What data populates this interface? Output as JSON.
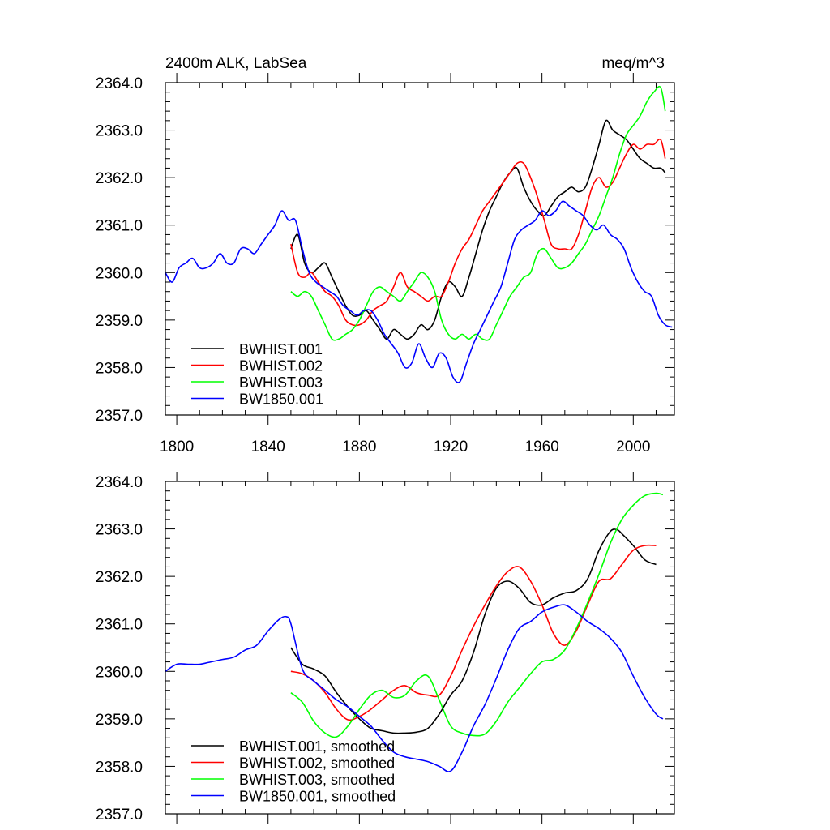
{
  "chart_data": [
    {
      "type": "line",
      "title": "2400m ALK, LabSea",
      "units": "meq/m^3",
      "xlim": [
        1795,
        2018
      ],
      "ylim": [
        2357.0,
        2364.0
      ],
      "xticks": [
        1800,
        1840,
        1880,
        1920,
        1960,
        2000
      ],
      "xtick_labels": [
        "1800",
        "1840",
        "1880",
        "1920",
        "1960",
        "2000"
      ],
      "yticks": [
        2357,
        2358,
        2359,
        2360,
        2361,
        2362,
        2363,
        2364
      ],
      "ytick_labels": [
        "2357.0",
        "2358.0",
        "2359.0",
        "2360.0",
        "2361.0",
        "2362.0",
        "2363.0",
        "2364.0"
      ],
      "legend_position": "bottom-left",
      "series": [
        {
          "name": "BWHIST.001",
          "color": "#000000",
          "x": [
            1850,
            1853,
            1856,
            1859,
            1862,
            1865,
            1868,
            1871,
            1874,
            1877,
            1880,
            1883,
            1886,
            1889,
            1892,
            1895,
            1898,
            1901,
            1904,
            1907,
            1910,
            1913,
            1916,
            1919,
            1922,
            1925,
            1928,
            1931,
            1934,
            1937,
            1940,
            1943,
            1946,
            1949,
            1952,
            1955,
            1958,
            1961,
            1964,
            1967,
            1970,
            1973,
            1976,
            1979,
            1982,
            1985,
            1988,
            1991,
            1994,
            1997,
            2000,
            2003,
            2006,
            2009,
            2012,
            2014
          ],
          "y": [
            2360.5,
            2360.8,
            2360.2,
            2360.0,
            2360.1,
            2360.2,
            2359.9,
            2359.6,
            2359.3,
            2359.1,
            2359.1,
            2359.2,
            2359.0,
            2358.8,
            2358.6,
            2358.8,
            2358.7,
            2358.6,
            2358.7,
            2358.9,
            2358.8,
            2359.0,
            2359.5,
            2359.8,
            2359.7,
            2359.5,
            2359.9,
            2360.4,
            2360.9,
            2361.3,
            2361.6,
            2361.9,
            2362.1,
            2362.2,
            2361.8,
            2361.5,
            2361.3,
            2361.2,
            2361.4,
            2361.6,
            2361.7,
            2361.8,
            2361.7,
            2361.8,
            2362.2,
            2362.7,
            2363.2,
            2363.0,
            2362.9,
            2362.8,
            2362.6,
            2362.4,
            2362.3,
            2362.2,
            2362.2,
            2362.1
          ]
        },
        {
          "name": "BWHIST.002",
          "color": "#ff0000",
          "x": [
            1850,
            1853,
            1856,
            1859,
            1862,
            1865,
            1868,
            1871,
            1874,
            1877,
            1880,
            1883,
            1886,
            1889,
            1892,
            1895,
            1898,
            1901,
            1904,
            1907,
            1910,
            1913,
            1916,
            1919,
            1922,
            1925,
            1928,
            1931,
            1934,
            1937,
            1940,
            1943,
            1946,
            1949,
            1952,
            1955,
            1958,
            1961,
            1964,
            1967,
            1970,
            1973,
            1976,
            1979,
            1982,
            1985,
            1988,
            1991,
            1994,
            1997,
            2000,
            2003,
            2006,
            2009,
            2012,
            2014
          ],
          "y": [
            2360.6,
            2360.0,
            2359.9,
            2360.0,
            2359.8,
            2359.6,
            2359.5,
            2359.3,
            2359.0,
            2358.9,
            2358.9,
            2359.0,
            2359.2,
            2359.3,
            2359.4,
            2359.7,
            2360.0,
            2359.7,
            2359.6,
            2359.5,
            2359.4,
            2359.5,
            2359.5,
            2359.8,
            2360.2,
            2360.5,
            2360.7,
            2361.0,
            2361.3,
            2361.5,
            2361.7,
            2361.9,
            2362.1,
            2362.3,
            2362.3,
            2362.0,
            2361.6,
            2361.1,
            2360.6,
            2360.5,
            2360.5,
            2360.5,
            2360.8,
            2361.3,
            2361.8,
            2362.0,
            2361.8,
            2361.9,
            2362.2,
            2362.5,
            2362.7,
            2362.6,
            2362.7,
            2362.7,
            2362.8,
            2362.4
          ]
        },
        {
          "name": "BWHIST.003",
          "color": "#00ff00",
          "x": [
            1850,
            1853,
            1856,
            1859,
            1862,
            1865,
            1868,
            1871,
            1874,
            1877,
            1880,
            1883,
            1886,
            1889,
            1892,
            1895,
            1898,
            1901,
            1904,
            1907,
            1910,
            1913,
            1916,
            1919,
            1922,
            1925,
            1928,
            1931,
            1934,
            1937,
            1940,
            1943,
            1946,
            1949,
            1952,
            1955,
            1958,
            1961,
            1964,
            1967,
            1970,
            1973,
            1976,
            1979,
            1982,
            1985,
            1988,
            1991,
            1994,
            1997,
            2000,
            2003,
            2006,
            2009,
            2012,
            2014
          ],
          "y": [
            2359.6,
            2359.5,
            2359.6,
            2359.5,
            2359.2,
            2358.9,
            2358.6,
            2358.6,
            2358.7,
            2358.8,
            2359.0,
            2359.3,
            2359.6,
            2359.7,
            2359.6,
            2359.5,
            2359.4,
            2359.6,
            2359.8,
            2360.0,
            2359.9,
            2359.6,
            2359.0,
            2358.7,
            2358.6,
            2358.7,
            2358.6,
            2358.7,
            2358.6,
            2358.6,
            2358.9,
            2359.2,
            2359.5,
            2359.7,
            2359.9,
            2360.0,
            2360.4,
            2360.5,
            2360.3,
            2360.1,
            2360.1,
            2360.2,
            2360.4,
            2360.6,
            2360.9,
            2361.2,
            2361.6,
            2362.0,
            2362.5,
            2362.9,
            2363.1,
            2363.3,
            2363.6,
            2363.8,
            2363.9,
            2363.4
          ]
        },
        {
          "name": "BW1850.001",
          "color": "#0000ff",
          "x": [
            1795,
            1798,
            1801,
            1804,
            1807,
            1810,
            1813,
            1816,
            1819,
            1822,
            1825,
            1828,
            1831,
            1834,
            1837,
            1840,
            1843,
            1846,
            1849,
            1852,
            1855,
            1858,
            1861,
            1864,
            1867,
            1870,
            1873,
            1876,
            1879,
            1882,
            1885,
            1888,
            1891,
            1894,
            1897,
            1900,
            1903,
            1906,
            1909,
            1912,
            1915,
            1918,
            1921,
            1924,
            1927,
            1930,
            1933,
            1936,
            1939,
            1942,
            1945,
            1948,
            1951,
            1954,
            1957,
            1960,
            1963,
            1966,
            1969,
            1972,
            1975,
            1978,
            1981,
            1984,
            1987,
            1990,
            1993,
            1996,
            1999,
            2002,
            2005,
            2008,
            2011,
            2014,
            2017
          ],
          "y": [
            2360.0,
            2359.8,
            2360.1,
            2360.2,
            2360.3,
            2360.1,
            2360.1,
            2360.2,
            2360.4,
            2360.2,
            2360.2,
            2360.5,
            2360.5,
            2360.4,
            2360.6,
            2360.8,
            2361.0,
            2361.3,
            2361.1,
            2361.1,
            2360.5,
            2360.0,
            2359.8,
            2359.7,
            2359.6,
            2359.5,
            2359.3,
            2359.2,
            2359.1,
            2359.2,
            2359.2,
            2359.0,
            2358.7,
            2358.5,
            2358.3,
            2358.0,
            2358.1,
            2358.5,
            2358.2,
            2358.0,
            2358.3,
            2358.2,
            2357.8,
            2357.7,
            2358.1,
            2358.5,
            2358.8,
            2359.1,
            2359.4,
            2359.7,
            2360.2,
            2360.7,
            2360.9,
            2361.0,
            2361.1,
            2361.3,
            2361.2,
            2361.3,
            2361.5,
            2361.4,
            2361.3,
            2361.2,
            2361.0,
            2360.9,
            2361.0,
            2360.8,
            2360.7,
            2360.5,
            2360.1,
            2359.8,
            2359.6,
            2359.5,
            2359.1,
            2358.9,
            2358.85
          ]
        }
      ]
    },
    {
      "type": "line",
      "xlim": [
        1795,
        2018
      ],
      "ylim": [
        2357.0,
        2364.0
      ],
      "xticks": [
        1800,
        1840,
        1880,
        1920,
        1960,
        2000
      ],
      "yticks": [
        2357,
        2358,
        2359,
        2360,
        2361,
        2362,
        2363,
        2364
      ],
      "ytick_labels": [
        "2357.0",
        "2358.0",
        "2359.0",
        "2360.0",
        "2361.0",
        "2362.0",
        "2363.0",
        "2364.0"
      ],
      "legend_position": "bottom-left",
      "series": [
        {
          "name": "BWHIST.001, smoothed",
          "color": "#000000",
          "x": [
            1850,
            1855,
            1860,
            1865,
            1870,
            1875,
            1880,
            1885,
            1890,
            1895,
            1900,
            1905,
            1910,
            1915,
            1920,
            1925,
            1930,
            1935,
            1940,
            1945,
            1950,
            1955,
            1960,
            1965,
            1970,
            1975,
            1980,
            1985,
            1990,
            1993,
            1995,
            2000,
            2005,
            2010
          ],
          "y": [
            2360.5,
            2360.15,
            2360.05,
            2359.9,
            2359.55,
            2359.25,
            2359.0,
            2358.8,
            2358.75,
            2358.7,
            2358.7,
            2358.72,
            2358.8,
            2359.1,
            2359.5,
            2359.8,
            2360.4,
            2361.2,
            2361.75,
            2361.9,
            2361.75,
            2361.45,
            2361.4,
            2361.55,
            2361.65,
            2361.7,
            2361.95,
            2362.55,
            2362.95,
            2362.98,
            2362.9,
            2362.65,
            2362.35,
            2362.25
          ]
        },
        {
          "name": "BWHIST.002, smoothed",
          "color": "#ff0000",
          "x": [
            1850,
            1855,
            1860,
            1865,
            1870,
            1875,
            1880,
            1885,
            1890,
            1895,
            1900,
            1905,
            1910,
            1915,
            1920,
            1925,
            1930,
            1935,
            1940,
            1945,
            1950,
            1955,
            1960,
            1965,
            1970,
            1975,
            1980,
            1985,
            1990,
            1995,
            2000,
            2005,
            2010
          ],
          "y": [
            2360.0,
            2359.95,
            2359.8,
            2359.55,
            2359.2,
            2358.98,
            2359.05,
            2359.2,
            2359.4,
            2359.6,
            2359.7,
            2359.55,
            2359.5,
            2359.5,
            2359.9,
            2360.45,
            2360.95,
            2361.4,
            2361.8,
            2362.1,
            2362.2,
            2361.9,
            2361.4,
            2360.8,
            2360.55,
            2360.85,
            2361.4,
            2361.9,
            2361.95,
            2362.25,
            2362.55,
            2362.65,
            2362.65
          ]
        },
        {
          "name": "BWHIST.003, smoothed",
          "color": "#00ff00",
          "x": [
            1850,
            1855,
            1860,
            1865,
            1870,
            1875,
            1880,
            1885,
            1890,
            1895,
            1900,
            1905,
            1910,
            1915,
            1920,
            1925,
            1930,
            1935,
            1940,
            1945,
            1950,
            1955,
            1960,
            1965,
            1970,
            1975,
            1980,
            1985,
            1990,
            1995,
            2000,
            2005,
            2010,
            2013
          ],
          "y": [
            2359.55,
            2359.35,
            2358.95,
            2358.7,
            2358.62,
            2358.85,
            2359.2,
            2359.5,
            2359.6,
            2359.45,
            2359.5,
            2359.8,
            2359.9,
            2359.4,
            2358.85,
            2358.7,
            2358.65,
            2358.68,
            2358.95,
            2359.35,
            2359.65,
            2359.95,
            2360.2,
            2360.25,
            2360.45,
            2360.9,
            2361.45,
            2362.05,
            2362.7,
            2363.2,
            2363.5,
            2363.7,
            2363.75,
            2363.72
          ]
        },
        {
          "name": "BW1850.001, smoothed",
          "color": "#0000ff",
          "x": [
            1795,
            1800,
            1805,
            1810,
            1815,
            1820,
            1825,
            1830,
            1835,
            1840,
            1845,
            1848,
            1850,
            1855,
            1860,
            1865,
            1870,
            1875,
            1880,
            1885,
            1890,
            1895,
            1900,
            1905,
            1910,
            1915,
            1920,
            1925,
            1930,
            1935,
            1940,
            1945,
            1950,
            1955,
            1960,
            1965,
            1970,
            1975,
            1980,
            1985,
            1990,
            1995,
            2000,
            2005,
            2010,
            2013
          ],
          "y": [
            2360.0,
            2360.15,
            2360.15,
            2360.15,
            2360.2,
            2360.25,
            2360.3,
            2360.45,
            2360.55,
            2360.85,
            2361.1,
            2361.15,
            2361.0,
            2360.05,
            2359.8,
            2359.6,
            2359.4,
            2359.25,
            2359.05,
            2358.85,
            2358.55,
            2358.3,
            2358.2,
            2358.15,
            2358.1,
            2358.0,
            2357.9,
            2358.3,
            2358.85,
            2359.3,
            2359.85,
            2360.45,
            2360.9,
            2361.05,
            2361.25,
            2361.35,
            2361.4,
            2361.25,
            2361.05,
            2360.9,
            2360.7,
            2360.4,
            2359.9,
            2359.45,
            2359.1,
            2359.0
          ]
        }
      ]
    }
  ]
}
